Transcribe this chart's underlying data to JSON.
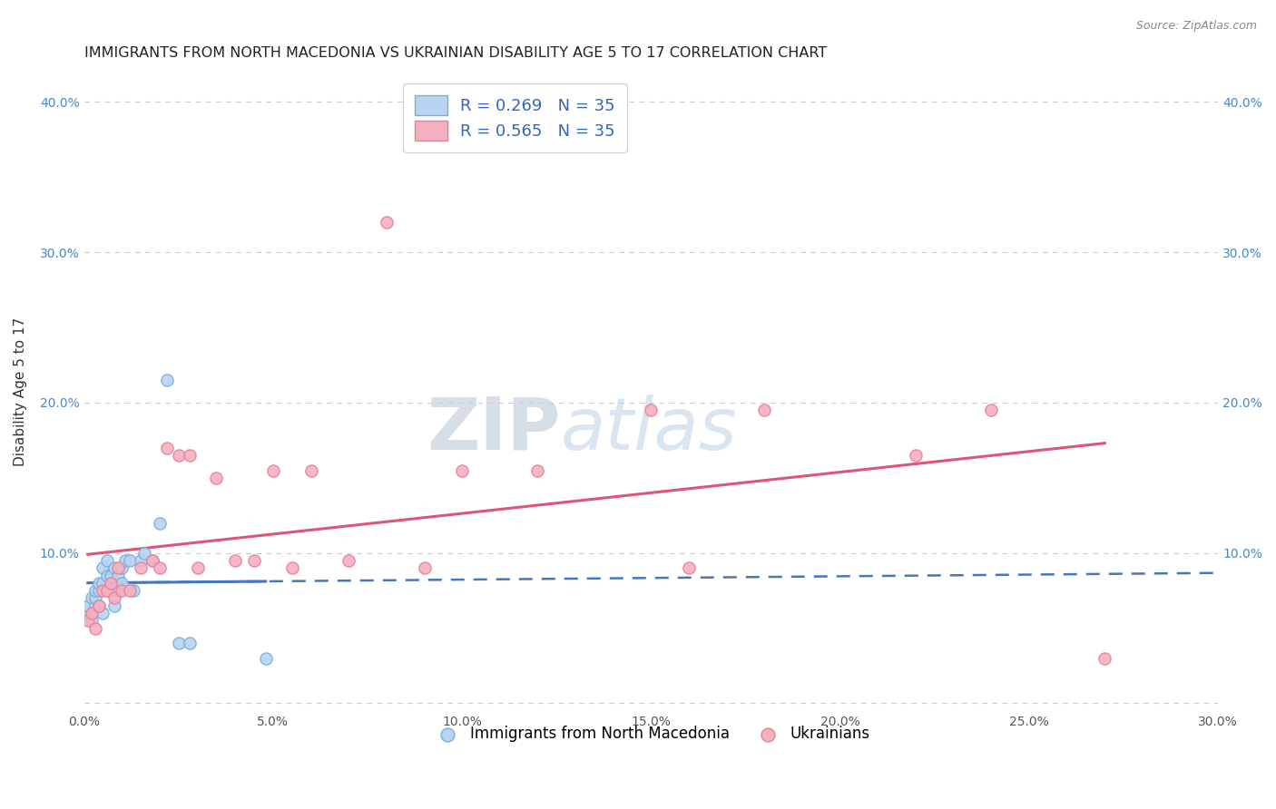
{
  "title": "IMMIGRANTS FROM NORTH MACEDONIA VS UKRAINIAN DISABILITY AGE 5 TO 17 CORRELATION CHART",
  "source": "Source: ZipAtlas.com",
  "ylabel": "Disability Age 5 to 17",
  "xlim": [
    0.0,
    0.3
  ],
  "ylim": [
    -0.005,
    0.42
  ],
  "xticks": [
    0.0,
    0.05,
    0.1,
    0.15,
    0.2,
    0.25,
    0.3
  ],
  "xtick_labels": [
    "0.0%",
    "5.0%",
    "10.0%",
    "15.0%",
    "20.0%",
    "25.0%",
    "30.0%"
  ],
  "yticks": [
    0.0,
    0.1,
    0.2,
    0.3,
    0.4
  ],
  "ytick_labels": [
    "",
    "10.0%",
    "20.0%",
    "30.0%",
    "40.0%"
  ],
  "series1_color": "#b8d4f0",
  "series1_edge": "#7aaedd",
  "series2_color": "#f5b0c0",
  "series2_edge": "#e88098",
  "trend1_color": "#4477bb",
  "trend2_color": "#dd5577",
  "R1": 0.269,
  "N1": 35,
  "R2": 0.565,
  "N2": 35,
  "legend1_label": "Immigrants from North Macedonia",
  "legend2_label": "Ukrainians",
  "watermark_zip": "ZIP",
  "watermark_atlas": "atlas",
  "background_color": "#ffffff",
  "grid_color": "#cccccc",
  "series1_x": [
    0.001,
    0.001,
    0.002,
    0.002,
    0.003,
    0.003,
    0.003,
    0.004,
    0.004,
    0.004,
    0.005,
    0.005,
    0.005,
    0.006,
    0.006,
    0.006,
    0.007,
    0.007,
    0.008,
    0.008,
    0.009,
    0.009,
    0.01,
    0.01,
    0.011,
    0.012,
    0.013,
    0.015,
    0.016,
    0.018,
    0.02,
    0.022,
    0.025,
    0.028,
    0.048
  ],
  "series1_y": [
    0.06,
    0.065,
    0.055,
    0.07,
    0.065,
    0.07,
    0.075,
    0.075,
    0.065,
    0.08,
    0.08,
    0.06,
    0.09,
    0.075,
    0.085,
    0.095,
    0.075,
    0.085,
    0.09,
    0.065,
    0.085,
    0.075,
    0.09,
    0.08,
    0.095,
    0.095,
    0.075,
    0.095,
    0.1,
    0.095,
    0.12,
    0.215,
    0.04,
    0.04,
    0.03
  ],
  "series2_x": [
    0.001,
    0.002,
    0.003,
    0.004,
    0.005,
    0.006,
    0.007,
    0.008,
    0.009,
    0.01,
    0.012,
    0.015,
    0.018,
    0.02,
    0.022,
    0.025,
    0.028,
    0.03,
    0.035,
    0.04,
    0.045,
    0.05,
    0.055,
    0.06,
    0.07,
    0.08,
    0.09,
    0.1,
    0.12,
    0.15,
    0.16,
    0.18,
    0.22,
    0.24,
    0.27
  ],
  "series2_y": [
    0.055,
    0.06,
    0.05,
    0.065,
    0.075,
    0.075,
    0.08,
    0.07,
    0.09,
    0.075,
    0.075,
    0.09,
    0.095,
    0.09,
    0.17,
    0.165,
    0.165,
    0.09,
    0.15,
    0.095,
    0.095,
    0.155,
    0.09,
    0.155,
    0.095,
    0.32,
    0.09,
    0.155,
    0.155,
    0.195,
    0.09,
    0.195,
    0.165,
    0.195,
    0.03
  ]
}
